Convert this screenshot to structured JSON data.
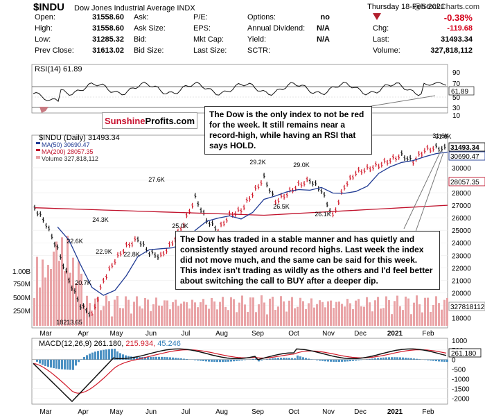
{
  "header": {
    "symbol": "$INDU",
    "name": "Dow Jones Industrial Average",
    "exchange": "INDX",
    "date": "Thursday  18-Feb-2021",
    "brand": "@StockCharts.com"
  },
  "quote": {
    "rows": [
      [
        "Open:",
        "31558.60",
        "Ask:",
        "",
        "P/E:",
        "",
        "Options:",
        "no",
        "",
        "-0.38%"
      ],
      [
        "High:",
        "31558.60",
        "Ask Size:",
        "",
        "EPS:",
        "",
        "Annual Dividend:",
        "N/A",
        "Chg:",
        "-119.68"
      ],
      [
        "Low:",
        "31285.32",
        "Bid:",
        "",
        "Mkt Cap:",
        "",
        "Yield:",
        "N/A",
        "Last:",
        "31493.34"
      ],
      [
        "Prev Close:",
        "31613.02",
        "Bid Size:",
        "",
        "Last Size:",
        "",
        "SCTR:",
        "",
        "Volume:",
        "327,818,112"
      ]
    ]
  },
  "rsi": {
    "label": "RSI(14) 61.89",
    "last": "61.89",
    "levels": [
      "90",
      "70",
      "50",
      "30",
      "10"
    ]
  },
  "price_legend": {
    "title": "$INDU (Daily) 31493.34",
    "ma50": "MA(50) 30690.47",
    "ma200": "MA(200) 28057.35",
    "volume": "Volume 327,818,112"
  },
  "price_tags": {
    "last": "31493.34",
    "ma50": "30690.47",
    "ma200": "28057.35",
    "volume": "327818112"
  },
  "macd_label": {
    "name": "MACD(12,26,9)",
    "macd": "261.180,",
    "signal": "215.934,",
    "hist": "45.246",
    "tag": "261.180"
  },
  "annotations": {
    "logo_a": "Sunshine",
    "logo_b": "Profits.com",
    "note1": "The Dow is the only index to not be red for the week. It still remains near a record-high, while having an RSI that says HOLD.",
    "note2": "The Dow has traded in a stable manner and has quietly and consistently stayed around record highs. Last week the index did not move much, and the same can be said for this week. This index isn't trading as wildly as the others and I'd feel better about switching the call to BUY after a deeper dip."
  },
  "colors": {
    "up": "#d11a2a",
    "down": "#111111",
    "ma50": "#1f3a93",
    "ma200": "#c0112b",
    "volume": "#e9a3a6",
    "macd_hist": "#4a90c2",
    "signal": "#d11a2a"
  },
  "chart_data": {
    "type": "line",
    "title": "$INDU (Daily) 31493.34",
    "x_ticks": [
      "Mar",
      "Apr",
      "May",
      "Jun",
      "Jul",
      "Aug",
      "Sep",
      "Oct",
      "Nov",
      "Dec",
      "2021",
      "Feb"
    ],
    "y_ticks": [
      "31.6K",
      "31493.34",
      "30690.47",
      "30000",
      "29000",
      "28000",
      "27000",
      "26000",
      "25000",
      "24000",
      "23000",
      "22000",
      "21000",
      "20000",
      "19000",
      "18000"
    ],
    "ylim": [
      17200,
      32600
    ],
    "price_points": [
      [
        "Mar",
        26800
      ],
      [
        "Mar",
        25500
      ],
      [
        "Mar",
        23500
      ],
      [
        "Mar",
        21000
      ],
      [
        "Mar",
        19000
      ],
      [
        "Mar",
        18214
      ],
      [
        "Apr",
        21000
      ],
      [
        "Apr",
        22600
      ],
      [
        "Apr",
        23700
      ],
      [
        "Apr",
        24300
      ],
      [
        "May",
        23200
      ],
      [
        "May",
        22900
      ],
      [
        "May",
        24000
      ],
      [
        "Jun",
        25500
      ],
      [
        "Jun",
        27600
      ],
      [
        "Jun",
        25800
      ],
      [
        "Jul",
        25000
      ],
      [
        "Jul",
        26200
      ],
      [
        "Aug",
        26600
      ],
      [
        "Aug",
        27900
      ],
      [
        "Sep",
        29200
      ],
      [
        "Sep",
        27300
      ],
      [
        "Oct",
        27900
      ],
      [
        "Oct",
        28600
      ],
      [
        "Oct",
        29000
      ],
      [
        "Oct",
        28200
      ],
      [
        "Nov",
        26100
      ],
      [
        "Nov",
        28500
      ],
      [
        "Nov",
        29600
      ],
      [
        "Dec",
        29900
      ],
      [
        "Dec",
        30200
      ],
      [
        "2021",
        30600
      ],
      [
        "2021",
        31000
      ],
      [
        "Feb",
        30500
      ],
      [
        "Feb",
        31400
      ],
      [
        "Feb",
        31600
      ],
      [
        "Feb",
        31493
      ]
    ],
    "labels": [
      {
        "text": "31.6K",
        "value": 31600
      },
      {
        "text": "29.2K",
        "value": 29200
      },
      {
        "text": "29.0K",
        "value": 29000
      },
      {
        "text": "27.6K",
        "value": 27600
      },
      {
        "text": "26.5K",
        "value": 26500
      },
      {
        "text": "26.1K",
        "value": 26100
      },
      {
        "text": "25.0K",
        "value": 25000
      },
      {
        "text": "24.3K",
        "value": 24300
      },
      {
        "text": "22.6K",
        "value": 22600
      },
      {
        "text": "22.9K",
        "value": 22900
      },
      {
        "text": "22.8K",
        "value": 22800
      },
      {
        "text": "20.7K",
        "value": 20700
      },
      {
        "text": "18213.65",
        "value": 18213.65
      }
    ],
    "volume_ticks": [
      "1.00B",
      "750M",
      "500M",
      "250M"
    ],
    "macd_ticks": [
      "1000",
      "500",
      "0",
      "-500",
      "-1000",
      "-1500",
      "-2000"
    ]
  }
}
